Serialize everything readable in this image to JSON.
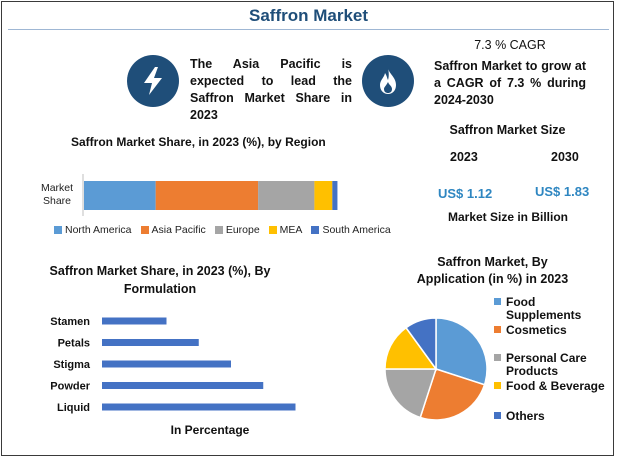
{
  "title": "Saffron Market",
  "insight": {
    "text": "The Asia Pacific is expected to lead the Saffron Market Share in 2023",
    "icon": "lightning-icon"
  },
  "cagr": {
    "label": "7.3 % CAGR",
    "text": "Saffron Market to grow at a CAGR of 7.3 % during 2024-2030",
    "icon": "flame-icon"
  },
  "market_size": {
    "heading": "Saffron Market Size",
    "year1": "2023",
    "year2": "2030",
    "value1": "US$ 1.12",
    "value2": "US$ 1.83",
    "caption": "Market Size in Billion"
  },
  "colors": {
    "primary": "#1f4e79",
    "value_blue": "#2e86c1",
    "north_america": "#5b9bd5",
    "asia_pacific": "#ed7d31",
    "europe": "#a5a5a5",
    "mea": "#ffc000",
    "south_america": "#4472c4"
  },
  "chart_data": [
    {
      "type": "bar",
      "orientation": "horizontal-stacked",
      "title": "Saffron Market Share, in 2023 (%), by Region",
      "categories": [
        "Market Share"
      ],
      "category_label_lines": [
        "Market",
        "Share"
      ],
      "series": [
        {
          "name": "North America",
          "values": [
            28
          ],
          "color": "#5b9bd5"
        },
        {
          "name": "Asia Pacific",
          "values": [
            40
          ],
          "color": "#ed7d31"
        },
        {
          "name": "Europe",
          "values": [
            22
          ],
          "color": "#a5a5a5"
        },
        {
          "name": "MEA",
          "values": [
            7
          ],
          "color": "#ffc000"
        },
        {
          "name": "South America",
          "values": [
            2
          ],
          "color": "#4472c4"
        }
      ],
      "legend": "bottom"
    },
    {
      "type": "bar",
      "orientation": "horizontal",
      "title_lines": [
        "Saffron Market Share, in 2023 (%), By",
        "Formulation"
      ],
      "categories": [
        "Stamen",
        "Petals",
        "Stigma",
        "Powder",
        "Liquid"
      ],
      "values": [
        10,
        15,
        20,
        25,
        30
      ],
      "xlabel": "In Percentage",
      "color": "#4472c4"
    },
    {
      "type": "pie",
      "title_lines": [
        "Saffron Market, By",
        "Application (in %) in 2023"
      ],
      "slices": [
        {
          "name": "Food Supplements",
          "label_lines": [
            "Food",
            "Supplements"
          ],
          "value": 30,
          "color": "#5b9bd5"
        },
        {
          "name": "Cosmetics",
          "label_lines": [
            "Cosmetics"
          ],
          "value": 25,
          "color": "#ed7d31"
        },
        {
          "name": "Personal Care Products",
          "label_lines": [
            "Personal Care",
            "Products"
          ],
          "value": 20,
          "color": "#a5a5a5"
        },
        {
          "name": "Food & Beverage",
          "label_lines": [
            "Food & Beverage"
          ],
          "value": 15,
          "color": "#ffc000"
        },
        {
          "name": "Others",
          "label_lines": [
            "Others"
          ],
          "value": 10,
          "color": "#4472c4"
        }
      ],
      "legend": "right"
    }
  ]
}
